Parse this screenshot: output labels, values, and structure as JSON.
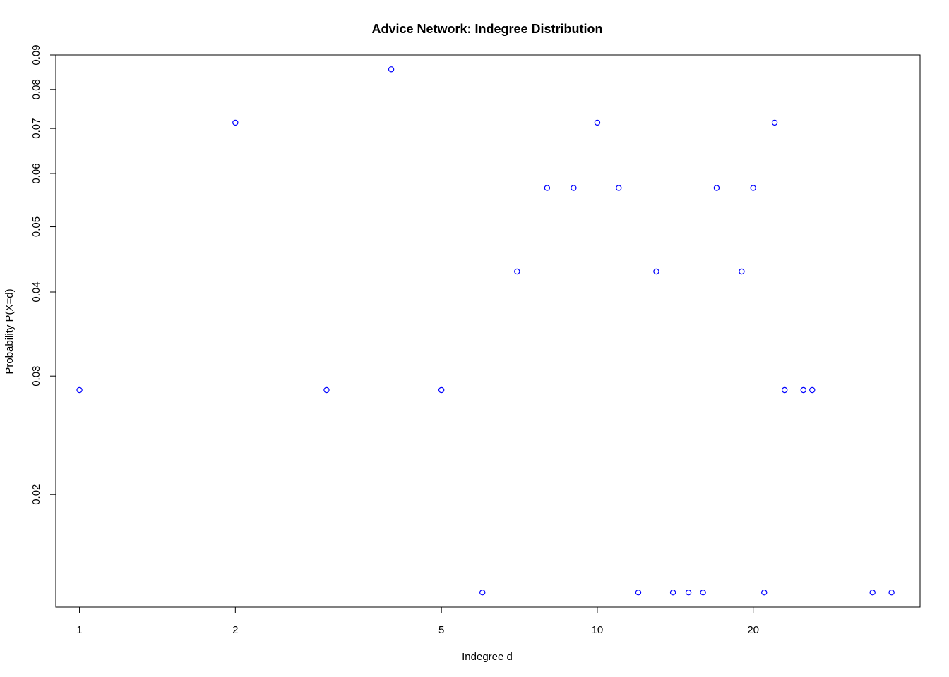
{
  "chart_data": {
    "type": "scatter",
    "title": "Advice Network: Indegree Distribution",
    "xlabel": "Indegree d",
    "ylabel": "Probability P(X=d)",
    "x_scale": "log",
    "y_scale": "log",
    "xlim": [
      0.9,
      42
    ],
    "ylim": [
      0.0136,
      0.09
    ],
    "x_ticks": [
      1,
      2,
      5,
      10,
      20
    ],
    "y_ticks": [
      0.02,
      0.03,
      0.04,
      0.05,
      0.06,
      0.07,
      0.08,
      0.09
    ],
    "x_tick_labels": [
      "1",
      "2",
      "5",
      "10",
      "20"
    ],
    "y_tick_labels": [
      "0.02",
      "0.03",
      "0.04",
      "0.05",
      "0.06",
      "0.07",
      "0.08",
      "0.09"
    ],
    "point_color": "#0000ff",
    "grid": false,
    "points": [
      {
        "x": 1,
        "y": 0.0286
      },
      {
        "x": 2,
        "y": 0.0714
      },
      {
        "x": 3,
        "y": 0.0286
      },
      {
        "x": 4,
        "y": 0.0857
      },
      {
        "x": 5,
        "y": 0.0286
      },
      {
        "x": 6,
        "y": 0.0143
      },
      {
        "x": 7,
        "y": 0.0429
      },
      {
        "x": 8,
        "y": 0.0571
      },
      {
        "x": 9,
        "y": 0.0571
      },
      {
        "x": 10,
        "y": 0.0714
      },
      {
        "x": 11,
        "y": 0.0571
      },
      {
        "x": 12,
        "y": 0.0143
      },
      {
        "x": 13,
        "y": 0.0429
      },
      {
        "x": 14,
        "y": 0.0143
      },
      {
        "x": 15,
        "y": 0.0143
      },
      {
        "x": 16,
        "y": 0.0143
      },
      {
        "x": 17,
        "y": 0.0571
      },
      {
        "x": 19,
        "y": 0.0429
      },
      {
        "x": 20,
        "y": 0.0571
      },
      {
        "x": 21,
        "y": 0.0143
      },
      {
        "x": 22,
        "y": 0.0714
      },
      {
        "x": 23,
        "y": 0.0286
      },
      {
        "x": 25,
        "y": 0.0286
      },
      {
        "x": 26,
        "y": 0.0286
      },
      {
        "x": 34,
        "y": 0.0143
      },
      {
        "x": 37,
        "y": 0.0143
      }
    ]
  }
}
